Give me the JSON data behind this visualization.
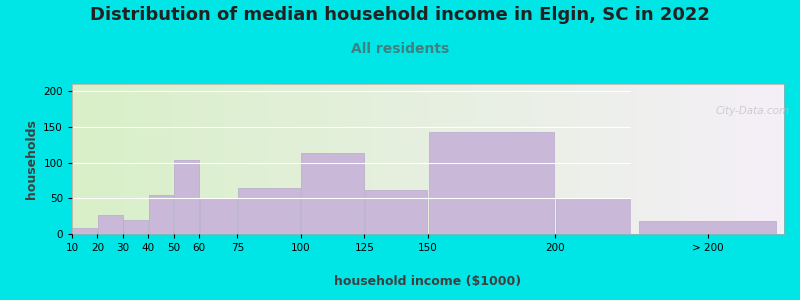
{
  "title": "Distribution of median household income in Elgin, SC in 2022",
  "subtitle": "All residents",
  "xlabel": "household income ($1000)",
  "ylabel": "households",
  "bar_lefts": [
    10,
    20,
    30,
    40,
    50,
    60,
    75,
    100,
    125,
    150
  ],
  "bar_widths": [
    10,
    10,
    10,
    10,
    10,
    15,
    25,
    25,
    25,
    50
  ],
  "bar_values": [
    8,
    27,
    20,
    55,
    104,
    50,
    65,
    113,
    62,
    143
  ],
  "bar_200_value": 50,
  "bar_gt200_value": 18,
  "bar_color": "#c9b8d8",
  "bar_edgecolor": "#b8a8cc",
  "ylim": [
    0,
    210
  ],
  "yticks": [
    0,
    50,
    100,
    150,
    200
  ],
  "xticks": [
    10,
    20,
    30,
    40,
    50,
    60,
    75,
    100,
    125,
    150,
    200
  ],
  "xlim_main": [
    10,
    230
  ],
  "bg_color": "#00e5e5",
  "plot_bg_color_left": "#d8f0c8",
  "plot_bg_color_right": "#f5f0f8",
  "title_fontsize": 13,
  "subtitle_fontsize": 10,
  "subtitle_color": "#408080",
  "axis_label_fontsize": 9,
  "watermark_text": "City-Data.com",
  "watermark_color": "#c0c0c0"
}
